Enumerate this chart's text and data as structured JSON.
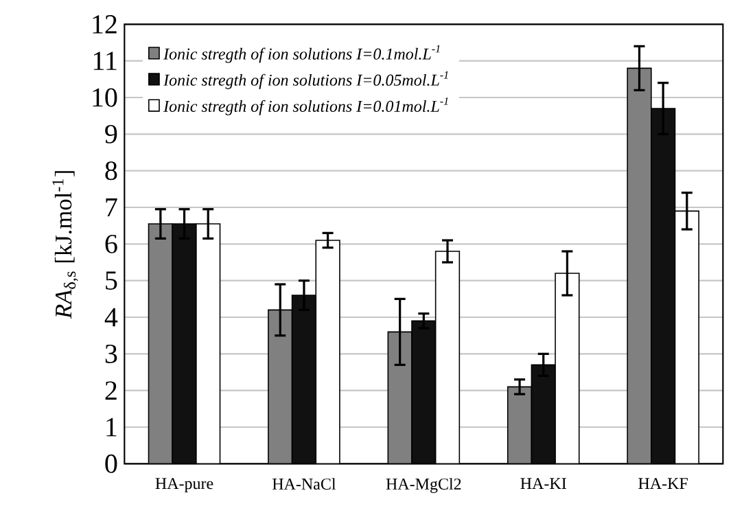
{
  "chart_data": {
    "type": "bar",
    "ylabel": "*RA*$_{δ,s}$ [kJ.mol$^{-1}$]",
    "categories": [
      "HA-pure",
      "HA-NaCl",
      "HA-MgCl2",
      "HA-KI",
      "HA-KF"
    ],
    "series": [
      {
        "name": "Ionic stregth of ion solutions  I=0.1mol.L$^{-1}$",
        "color": "#808080",
        "values": [
          6.55,
          4.2,
          3.6,
          2.1,
          10.8
        ],
        "errors": [
          0.4,
          0.7,
          0.9,
          0.2,
          0.6
        ]
      },
      {
        "name": "Ionic stregth of ion solutions I=0.05mol.L$^{-1}$",
        "color": "#111111",
        "values": [
          6.55,
          4.6,
          3.9,
          2.7,
          9.7
        ],
        "errors": [
          0.4,
          0.4,
          0.2,
          0.3,
          0.7
        ]
      },
      {
        "name": "Ionic stregth of ion solutions I=0.01mol.L$^{-1}$",
        "color": "#ffffff",
        "values": [
          6.55,
          6.1,
          5.8,
          5.2,
          6.9
        ],
        "errors": [
          0.4,
          0.2,
          0.3,
          0.6,
          0.5
        ]
      }
    ],
    "ylim": [
      0,
      12
    ],
    "yticks": [
      0,
      1,
      2,
      3,
      4,
      5,
      6,
      7,
      8,
      9,
      10,
      11,
      12
    ],
    "grid": "y",
    "legend": "top left"
  }
}
